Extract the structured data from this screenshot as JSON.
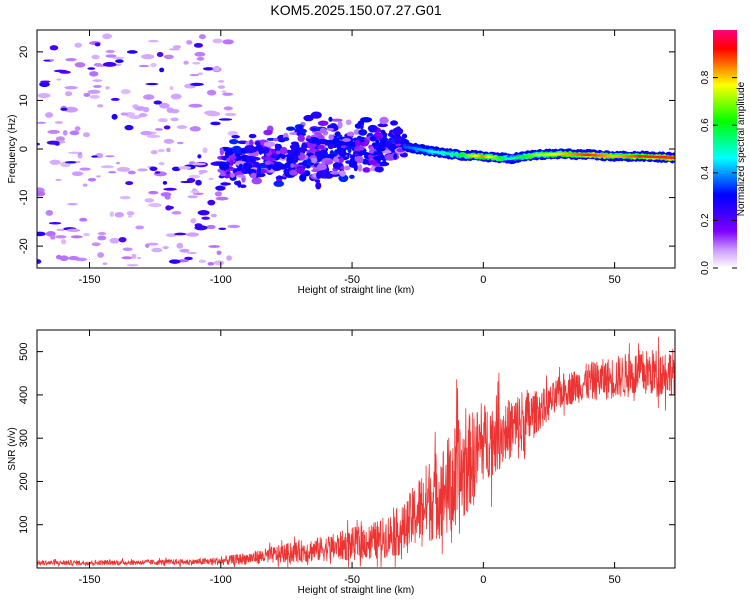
{
  "title": "KOM5.2025.150.07.27.G01",
  "chart_data": [
    {
      "type": "heatmap",
      "xlabel": "Height of straight line (km)",
      "ylabel": "Frequency (Hz)",
      "xlim": [
        -170,
        73
      ],
      "ylim": [
        -24.5,
        24.5
      ],
      "xticks": [
        -150,
        -100,
        -50,
        0,
        50
      ],
      "yticks": [
        -20,
        -10,
        0,
        10,
        20
      ],
      "colorbar": {
        "label": "Normalized spectral amplitude",
        "range": [
          0.0,
          1.0
        ],
        "ticks": [
          0.0,
          0.2,
          0.4,
          0.6,
          0.8
        ],
        "colors": [
          "#ffffff",
          "#cc99ff",
          "#7f00ff",
          "#3b00ff",
          "#0000ff",
          "#0080ff",
          "#00ffff",
          "#00ff80",
          "#00ff00",
          "#80ff00",
          "#ffff00",
          "#ff8000",
          "#ff0000",
          "#ff0080"
        ]
      },
      "features": {
        "noise_scatter": {
          "x_range": [
            -170,
            -95
          ],
          "freq_range": [
            -24,
            24
          ],
          "amplitude": 0.05
        },
        "spreading_cluster": {
          "x_range": [
            -100,
            -30
          ],
          "freq_center_from": -3,
          "freq_center_to": 1,
          "freq_spread": 7,
          "amplitude": 0.25
        },
        "carrier_line": [
          {
            "x": -30,
            "freq": 0.5,
            "amplitude": 0.35
          },
          {
            "x": -20,
            "freq": -0.5,
            "amplitude": 0.45
          },
          {
            "x": -10,
            "freq": -1.2,
            "amplitude": 0.55
          },
          {
            "x": 0,
            "freq": -1.5,
            "amplitude": 0.85
          },
          {
            "x": 10,
            "freq": -2.0,
            "amplitude": 0.5
          },
          {
            "x": 20,
            "freq": -1.2,
            "amplitude": 0.7
          },
          {
            "x": 30,
            "freq": -1.0,
            "amplitude": 0.8
          },
          {
            "x": 40,
            "freq": -1.2,
            "amplitude": 0.9
          },
          {
            "x": 50,
            "freq": -1.5,
            "amplitude": 0.8
          },
          {
            "x": 60,
            "freq": -1.5,
            "amplitude": 0.9
          },
          {
            "x": 73,
            "freq": -1.8,
            "amplitude": 0.9
          }
        ]
      },
      "grid": false
    },
    {
      "type": "line",
      "xlabel": "Height of straight line (km)",
      "ylabel": "SNR (v/v)",
      "xlim": [
        -170,
        73
      ],
      "ylim": [
        0,
        550
      ],
      "xticks": [
        -150,
        -100,
        -50,
        0,
        50
      ],
      "yticks": [
        100,
        200,
        300,
        400,
        500
      ],
      "color": "#ee3333",
      "grid": false,
      "series": [
        {
          "x": [
            -170,
            -150,
            -130,
            -110,
            -100,
            -90,
            -80,
            -70,
            -60,
            -50,
            -40,
            -30,
            -25,
            -20,
            -15,
            -10,
            -5,
            0,
            5,
            10,
            15,
            20,
            25,
            30,
            35,
            40,
            50,
            60,
            73
          ],
          "mean": [
            12,
            12,
            13,
            14,
            16,
            22,
            30,
            38,
            45,
            55,
            65,
            90,
            130,
            160,
            180,
            200,
            250,
            290,
            310,
            320,
            330,
            360,
            380,
            410,
            420,
            430,
            440,
            450,
            455
          ],
          "noise_amplitude": [
            6,
            6,
            6,
            7,
            10,
            14,
            20,
            26,
            30,
            38,
            45,
            60,
            80,
            100,
            110,
            140,
            110,
            90,
            90,
            70,
            90,
            50,
            40,
            40,
            40,
            45,
            50,
            55,
            55
          ]
        }
      ]
    }
  ]
}
